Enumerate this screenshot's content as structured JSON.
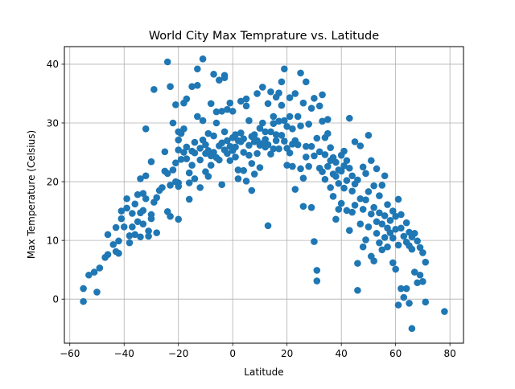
{
  "chart_data": {
    "type": "scatter",
    "title": "World City Max Temprature vs. Latitude",
    "xlabel": "Latitude",
    "ylabel": "Max Temperature (Celsius)",
    "xlim": [
      -62,
      85
    ],
    "ylim": [
      -7.5,
      43
    ],
    "xticks": [
      -60,
      -40,
      -20,
      0,
      20,
      40,
      60,
      80
    ],
    "yticks": [
      0,
      10,
      20,
      30,
      40
    ],
    "grid": true,
    "color": "#1f77b4",
    "points": [
      [
        -55,
        1.8
      ],
      [
        -55,
        -0.4
      ],
      [
        -53,
        4.1
      ],
      [
        -51,
        4.6
      ],
      [
        -50,
        1.2
      ],
      [
        -49,
        5.3
      ],
      [
        -47,
        7.1
      ],
      [
        -46,
        7.6
      ],
      [
        -46,
        11.0
      ],
      [
        -44,
        9.3
      ],
      [
        -43,
        8.1
      ],
      [
        -43,
        12.2
      ],
      [
        -42,
        9.9
      ],
      [
        -42,
        7.8
      ],
      [
        -41,
        13.7
      ],
      [
        -41,
        15.0
      ],
      [
        -40,
        12.3
      ],
      [
        -39,
        17.1
      ],
      [
        -39,
        15.5
      ],
      [
        -38,
        10.8
      ],
      [
        -38,
        9.6
      ],
      [
        -37,
        12.3
      ],
      [
        -37,
        14.6
      ],
      [
        -36,
        16.2
      ],
      [
        -36,
        11.0
      ],
      [
        -35,
        17.8
      ],
      [
        -35,
        13.2
      ],
      [
        -34,
        10.6
      ],
      [
        -34,
        20.5
      ],
      [
        -34,
        14.7
      ],
      [
        -33,
        18.0
      ],
      [
        -33,
        15.1
      ],
      [
        -33,
        12.8
      ],
      [
        -32,
        21.0
      ],
      [
        -32,
        17.1
      ],
      [
        -32,
        29.0
      ],
      [
        -31,
        11.6
      ],
      [
        -31,
        10.7
      ],
      [
        -30,
        23.4
      ],
      [
        -30,
        14.4
      ],
      [
        -30,
        13.7
      ],
      [
        -29,
        35.7
      ],
      [
        -29,
        16.5
      ],
      [
        -28,
        11.3
      ],
      [
        -28,
        17.3
      ],
      [
        -27,
        18.5
      ],
      [
        -26,
        19.0
      ],
      [
        -25,
        21.8
      ],
      [
        -25,
        25.1
      ],
      [
        -24,
        40.4
      ],
      [
        -24,
        14.9
      ],
      [
        -24,
        21.4
      ],
      [
        -23,
        36.2
      ],
      [
        -23,
        14.1
      ],
      [
        -23,
        19.4
      ],
      [
        -22,
        30.0
      ],
      [
        -22,
        22.0
      ],
      [
        -21,
        20.0
      ],
      [
        -21,
        23.2
      ],
      [
        -21,
        33.1
      ],
      [
        -20,
        19.8
      ],
      [
        -20,
        28.5
      ],
      [
        -20,
        27.1
      ],
      [
        -20,
        13.6
      ],
      [
        -20,
        25.4
      ],
      [
        -20,
        19.2
      ],
      [
        -19,
        23.8
      ],
      [
        -19,
        28.2
      ],
      [
        -18,
        25.0
      ],
      [
        -18,
        33.4
      ],
      [
        -18,
        29.0
      ],
      [
        -17,
        34.1
      ],
      [
        -17,
        25.9
      ],
      [
        -17,
        23.9
      ],
      [
        -16,
        21.5
      ],
      [
        -16,
        19.8
      ],
      [
        -16,
        17.0
      ],
      [
        -15,
        36.2
      ],
      [
        -15,
        25.2
      ],
      [
        -15,
        22.8
      ],
      [
        -14,
        26.7
      ],
      [
        -14,
        20.5
      ],
      [
        -14,
        24.9
      ],
      [
        -13,
        39.2
      ],
      [
        -13,
        36.4
      ],
      [
        -13,
        31.1
      ],
      [
        -12,
        23.7
      ],
      [
        -12,
        19.0
      ],
      [
        -12,
        25.7
      ],
      [
        -11,
        40.9
      ],
      [
        -11,
        30.4
      ],
      [
        -11,
        27.1
      ],
      [
        -10,
        26.3
      ],
      [
        -10,
        24.8
      ],
      [
        -10,
        21.7
      ],
      [
        -9,
        28.2
      ],
      [
        -9,
        25.3
      ],
      [
        -9,
        20.9
      ],
      [
        -8,
        33.3
      ],
      [
        -8,
        24.4
      ],
      [
        -8,
        22.8
      ],
      [
        -7,
        38.3
      ],
      [
        -7,
        27.8
      ],
      [
        -7,
        25.0
      ],
      [
        -6,
        31.9
      ],
      [
        -6,
        30.0
      ],
      [
        -6,
        24.1
      ],
      [
        -5,
        37.3
      ],
      [
        -5,
        26.1
      ],
      [
        -5,
        23.7
      ],
      [
        -4,
        32.0
      ],
      [
        -4,
        26.6
      ],
      [
        -4,
        19.5
      ],
      [
        -3,
        38.1
      ],
      [
        -3,
        37.7
      ],
      [
        -3,
        28.5
      ],
      [
        -3,
        25.4
      ],
      [
        -2,
        32.3
      ],
      [
        -2,
        27.0
      ],
      [
        -2,
        24.8
      ],
      [
        -1,
        33.4
      ],
      [
        -1,
        26.0
      ],
      [
        -1,
        23.6
      ],
      [
        0,
        27.5
      ],
      [
        0,
        25.3
      ],
      [
        0,
        32.0
      ],
      [
        1,
        25.9
      ],
      [
        1,
        28.0
      ],
      [
        1,
        24.2
      ],
      [
        2,
        22.0
      ],
      [
        2,
        27.0
      ],
      [
        2,
        20.5
      ],
      [
        3,
        33.7
      ],
      [
        3,
        28.3
      ],
      [
        3,
        26.8
      ],
      [
        4,
        25.0
      ],
      [
        4,
        21.9
      ],
      [
        4,
        27.3
      ],
      [
        5,
        34.1
      ],
      [
        5,
        32.9
      ],
      [
        5,
        20.1
      ],
      [
        6,
        26.2
      ],
      [
        6,
        24.5
      ],
      [
        6,
        30.4
      ],
      [
        7,
        27.7
      ],
      [
        7,
        23.1
      ],
      [
        7,
        18.5
      ],
      [
        8,
        26.8
      ],
      [
        8,
        28.0
      ],
      [
        8,
        21.3
      ],
      [
        9,
        35.0
      ],
      [
        9,
        27.0
      ],
      [
        9,
        24.8
      ],
      [
        10,
        26.2
      ],
      [
        10,
        29.1
      ],
      [
        10,
        22.4
      ],
      [
        11,
        36.1
      ],
      [
        11,
        30.0
      ],
      [
        11,
        26.5
      ],
      [
        12,
        28.5
      ],
      [
        12,
        27.2
      ],
      [
        12,
        25.9
      ],
      [
        13,
        33.3
      ],
      [
        13,
        26.3
      ],
      [
        13,
        12.5
      ],
      [
        14,
        35.3
      ],
      [
        14,
        28.5
      ],
      [
        14,
        24.7
      ],
      [
        15,
        31.1
      ],
      [
        15,
        25.6
      ],
      [
        15,
        29.9
      ],
      [
        16,
        34.4
      ],
      [
        16,
        28.0
      ],
      [
        16,
        27.0
      ],
      [
        17,
        35.1
      ],
      [
        17,
        30.3
      ],
      [
        17,
        25.6
      ],
      [
        18,
        37.0
      ],
      [
        18,
        33.0
      ],
      [
        18,
        27.9
      ],
      [
        19,
        39.2
      ],
      [
        19,
        30.4
      ],
      [
        19,
        26.9
      ],
      [
        20,
        22.8
      ],
      [
        20,
        25.7
      ],
      [
        20,
        29.4
      ],
      [
        21,
        34.3
      ],
      [
        21,
        31.1
      ],
      [
        21,
        24.9
      ],
      [
        22,
        26.4
      ],
      [
        22,
        22.6
      ],
      [
        22,
        29.0
      ],
      [
        23,
        35.0
      ],
      [
        23,
        27.0
      ],
      [
        23,
        18.7
      ],
      [
        24,
        31.1
      ],
      [
        24,
        26.3
      ],
      [
        25,
        38.5
      ],
      [
        25,
        29.5
      ],
      [
        25,
        22.2
      ],
      [
        26,
        20.6
      ],
      [
        26,
        15.8
      ],
      [
        26,
        33.4
      ],
      [
        27,
        37.0
      ],
      [
        27,
        26.0
      ],
      [
        27,
        24.2
      ],
      [
        28,
        29.8
      ],
      [
        28,
        22.6
      ],
      [
        29,
        32.5
      ],
      [
        29,
        15.6
      ],
      [
        29,
        26.0
      ],
      [
        30,
        34.2
      ],
      [
        30,
        9.8
      ],
      [
        30,
        24.4
      ],
      [
        31,
        4.9
      ],
      [
        31,
        3.1
      ],
      [
        31,
        27.4
      ],
      [
        32,
        32.9
      ],
      [
        32,
        25.1
      ],
      [
        32,
        22.3
      ],
      [
        33,
        34.8
      ],
      [
        33,
        30.3
      ],
      [
        33,
        21.7
      ],
      [
        34,
        27.5
      ],
      [
        34,
        24.6
      ],
      [
        34,
        20.4
      ],
      [
        35,
        30.6
      ],
      [
        35,
        28.2
      ],
      [
        35,
        22.6
      ],
      [
        36,
        25.8
      ],
      [
        36,
        23.6
      ],
      [
        36,
        19.0
      ],
      [
        37,
        24.1
      ],
      [
        37,
        21.3
      ],
      [
        37,
        17.5
      ],
      [
        38,
        23.3
      ],
      [
        38,
        20.9
      ],
      [
        38,
        13.6
      ],
      [
        39,
        22.0
      ],
      [
        39,
        19.7
      ],
      [
        39,
        15.3
      ],
      [
        40,
        24.5
      ],
      [
        40,
        21.8
      ],
      [
        40,
        16.3
      ],
      [
        41,
        25.2
      ],
      [
        41,
        22.7
      ],
      [
        41,
        18.9
      ],
      [
        42,
        23.6
      ],
      [
        42,
        20.2
      ],
      [
        42,
        15.1
      ],
      [
        43,
        30.8
      ],
      [
        43,
        22.3
      ],
      [
        43,
        11.7
      ],
      [
        44,
        21.0
      ],
      [
        44,
        18.4
      ],
      [
        44,
        14.8
      ],
      [
        45,
        26.8
      ],
      [
        45,
        19.6
      ],
      [
        45,
        16.0
      ],
      [
        46,
        20.3
      ],
      [
        46,
        6.1
      ],
      [
        46,
        1.5
      ],
      [
        47,
        26.1
      ],
      [
        47,
        17.1
      ],
      [
        47,
        12.8
      ],
      [
        48,
        22.5
      ],
      [
        48,
        15.3
      ],
      [
        48,
        8.9
      ],
      [
        49,
        21.4
      ],
      [
        49,
        16.9
      ],
      [
        49,
        10.1
      ],
      [
        50,
        27.9
      ],
      [
        50,
        18.3
      ],
      [
        50,
        12.3
      ],
      [
        51,
        23.6
      ],
      [
        51,
        14.5
      ],
      [
        51,
        7.3
      ],
      [
        52,
        19.3
      ],
      [
        52,
        15.6
      ],
      [
        52,
        6.5
      ],
      [
        53,
        22.2
      ],
      [
        53,
        13.2
      ],
      [
        53,
        11.2
      ],
      [
        54,
        17.6
      ],
      [
        54,
        14.7
      ],
      [
        54,
        9.6
      ],
      [
        55,
        19.4
      ],
      [
        55,
        12.8
      ],
      [
        55,
        8.4
      ],
      [
        56,
        21.0
      ],
      [
        56,
        14.2
      ],
      [
        56,
        10.5
      ],
      [
        57,
        16.1
      ],
      [
        57,
        12.1
      ],
      [
        57,
        8.9
      ],
      [
        58,
        13.4
      ],
      [
        58,
        11.3
      ],
      [
        59,
        15.0
      ],
      [
        59,
        10.4
      ],
      [
        59,
        6.2
      ],
      [
        60,
        14.1
      ],
      [
        60,
        11.9
      ],
      [
        60,
        5.1
      ],
      [
        61,
        17.0
      ],
      [
        61,
        9.2
      ],
      [
        61,
        -1.0
      ],
      [
        62,
        14.4
      ],
      [
        62,
        12.1
      ],
      [
        62,
        1.8
      ],
      [
        63,
        10.7
      ],
      [
        63,
        0.3
      ],
      [
        64,
        13.0
      ],
      [
        64,
        9.7
      ],
      [
        64,
        1.8
      ],
      [
        65,
        11.4
      ],
      [
        65,
        -0.7
      ],
      [
        65,
        9.1
      ],
      [
        66,
        10.6
      ],
      [
        66,
        -5.0
      ],
      [
        66,
        8.5
      ],
      [
        67,
        11.2
      ],
      [
        67,
        4.6
      ],
      [
        68,
        9.9
      ],
      [
        68,
        2.8
      ],
      [
        69,
        8.8
      ],
      [
        69,
        4.1
      ],
      [
        70,
        7.9
      ],
      [
        70,
        3.0
      ],
      [
        71,
        6.3
      ],
      [
        71,
        -0.5
      ],
      [
        78,
        -2.1
      ]
    ]
  }
}
